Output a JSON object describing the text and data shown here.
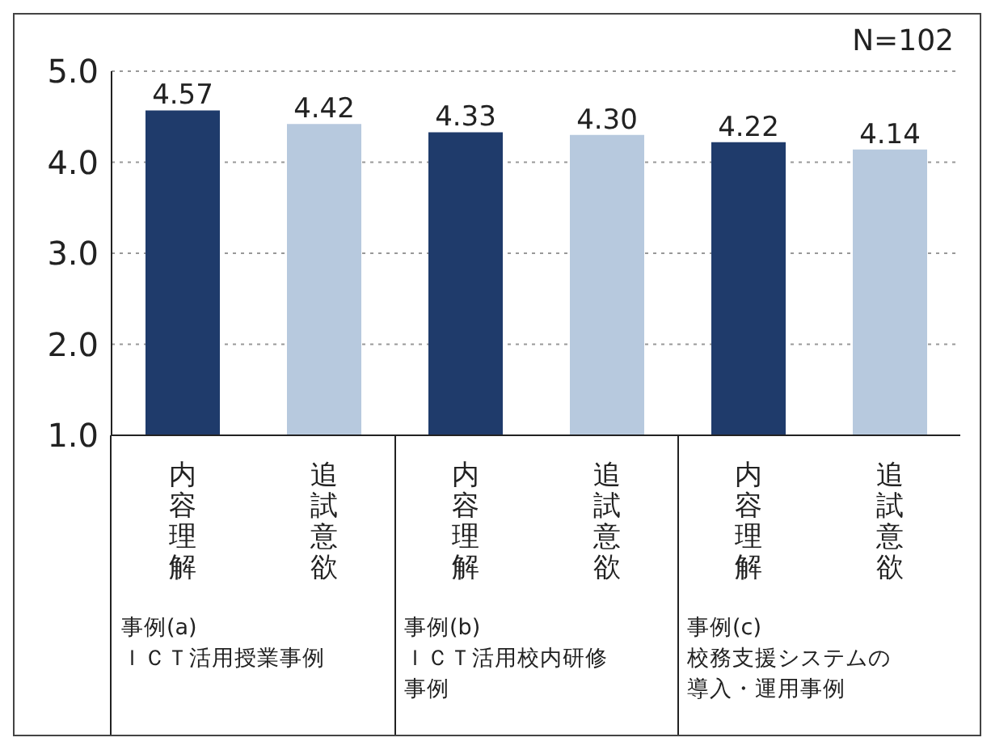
{
  "chart_data": {
    "type": "bar",
    "categories": [
      "内容理解",
      "追試意欲",
      "内容理解",
      "追試意欲",
      "内容理解",
      "追試意欲"
    ],
    "values": [
      4.57,
      4.42,
      4.33,
      4.3,
      4.22,
      4.14
    ],
    "value_labels": [
      "4.57",
      "4.42",
      "4.33",
      "4.30",
      "4.22",
      "4.14"
    ],
    "colors": [
      "#1f3b6b",
      "#b7c9de",
      "#1f3b6b",
      "#b7c9de",
      "#1f3b6b",
      "#b7c9de"
    ],
    "ylim": [
      1,
      5
    ],
    "yticks": [
      {
        "value": 1,
        "label": "1.0"
      },
      {
        "value": 2,
        "label": "2.0"
      },
      {
        "value": 3,
        "label": "3.0"
      },
      {
        "value": 4,
        "label": "4.0"
      },
      {
        "value": 5,
        "label": "5.0"
      }
    ],
    "grid": "y",
    "annotations": [
      "N=102",
      "事例(a)\nＩＣＴ活用授業事例",
      "事例(b)\nＩＣＴ活用校内研修事例",
      "事例(c)\n校務支援システムの導入・運用事例"
    ]
  }
}
